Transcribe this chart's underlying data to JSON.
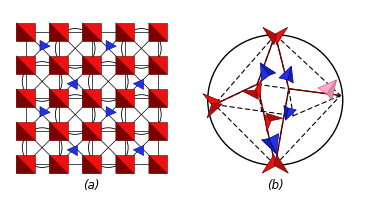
{
  "fig_width": 3.67,
  "fig_height": 2.0,
  "dpi": 100,
  "background": "#ffffff",
  "label_a": "(a)",
  "label_b": "(b)",
  "red_color": "#ee1111",
  "dark_red": "#660000",
  "blue_color": "#2233dd",
  "blue_dark": "#0000aa",
  "pink_color": "#ffaacc",
  "pink_dark": "#cc6688",
  "black": "#000000",
  "gray_line": "#333333"
}
